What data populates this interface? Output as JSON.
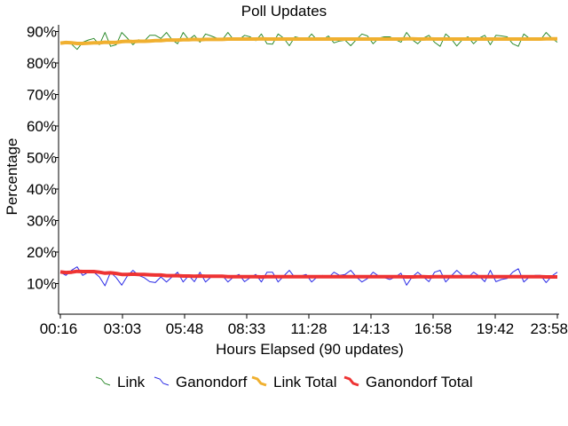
{
  "chart_data": {
    "type": "line",
    "title": "Poll Updates",
    "xlabel": "Hours Elapsed (90 updates)",
    "ylabel": "Percentage",
    "ylim": [
      0,
      90
    ],
    "x_ticks": [
      "00:16",
      "03:03",
      "05:48",
      "08:33",
      "11:28",
      "14:13",
      "16:58",
      "19:42",
      "23:58"
    ],
    "y_ticks": [
      "10%",
      "20%",
      "30%",
      "40%",
      "50%",
      "60%",
      "70%",
      "80%",
      "90%"
    ],
    "legend_position": "bottom",
    "grid": false,
    "series": [
      {
        "name": "Link",
        "color": "#2e8b2e",
        "values": [
          86.6,
          86.8,
          86,
          84.3,
          86.6,
          87.3,
          87.8,
          85.8,
          89.7,
          85.3,
          85.8,
          89.7,
          87.9,
          85.8,
          87.4,
          86.9,
          88.8,
          88.8,
          87.8,
          89.7,
          87.4,
          86.1,
          89.7,
          87.4,
          88.8,
          86.6,
          89.2,
          88.6,
          87.9,
          87.4,
          89.7,
          87.4,
          87.4,
          88.8,
          88.3,
          87.1,
          89.2,
          86.1,
          86,
          89.2,
          87.9,
          85.5,
          88.3,
          87.9,
          87.2,
          89.2,
          87.3,
          87.4,
          88.6,
          86.4,
          87,
          87.2,
          85.5,
          87.4,
          89.2,
          88.6,
          86.1,
          87.9,
          88.3,
          88.3,
          87.4,
          86.6,
          89.7,
          87.4,
          86.1,
          87.9,
          88.8,
          86.6,
          85.3,
          89.2,
          87.7,
          85.4,
          87.4,
          88.3,
          86.1,
          87.9,
          88.8,
          85.8,
          88.8,
          88.6,
          88.3,
          86.1,
          85.3,
          89.2,
          87.8,
          87.3,
          87.4,
          89.7,
          87.9,
          86.6
        ]
      },
      {
        "name": "Ganondorf",
        "color": "#2a2ae6",
        "values": [
          13.6,
          12.6,
          14.2,
          15.3,
          12.6,
          13.6,
          13.6,
          12.1,
          9.3,
          13.6,
          11.9,
          9.5,
          12.4,
          14.2,
          12.6,
          11.9,
          10.6,
          10.3,
          12.1,
          10.5,
          12.1,
          13.6,
          10.5,
          12.6,
          10.6,
          13.6,
          10.5,
          12.1,
          12.4,
          12.6,
          10.5,
          12.1,
          12.9,
          10.6,
          11.9,
          12.9,
          10.5,
          13.6,
          13.6,
          10.5,
          12.4,
          14.2,
          11.9,
          12.4,
          12.9,
          10.5,
          12.1,
          12.6,
          11.9,
          13.6,
          12.6,
          12.9,
          14.2,
          12.1,
          10.5,
          11.6,
          13.6,
          12.4,
          11.9,
          11.3,
          12.1,
          13.3,
          9.5,
          12.1,
          13.6,
          12.1,
          10.6,
          13.6,
          14.2,
          10.5,
          12.4,
          14.2,
          12.6,
          11.9,
          13.6,
          12.4,
          10.6,
          14.2,
          10.6,
          11.3,
          11.6,
          13.6,
          14.7,
          10.5,
          12.1,
          12.6,
          12.6,
          10.3,
          12.4,
          13.6
        ]
      },
      {
        "name": "Link Total",
        "color": "#f0b030",
        "values": [
          86.3,
          86.5,
          86.4,
          86.2,
          86.2,
          86.3,
          86.4,
          86.4,
          86.6,
          86.5,
          86.5,
          86.8,
          86.9,
          86.8,
          86.9,
          86.9,
          87.0,
          87.1,
          87.1,
          87.3,
          87.3,
          87.3,
          87.4,
          87.4,
          87.5,
          87.4,
          87.5,
          87.5,
          87.5,
          87.5,
          87.6,
          87.6,
          87.6,
          87.6,
          87.6,
          87.6,
          87.7,
          87.6,
          87.6,
          87.6,
          87.6,
          87.6,
          87.6,
          87.6,
          87.6,
          87.6,
          87.6,
          87.6,
          87.6,
          87.6,
          87.6,
          87.6,
          87.6,
          87.6,
          87.6,
          87.6,
          87.6,
          87.6,
          87.6,
          87.6,
          87.6,
          87.6,
          87.7,
          87.7,
          87.6,
          87.6,
          87.7,
          87.6,
          87.6,
          87.6,
          87.6,
          87.6,
          87.6,
          87.6,
          87.6,
          87.6,
          87.6,
          87.6,
          87.6,
          87.6,
          87.6,
          87.6,
          87.6,
          87.6,
          87.6,
          87.6,
          87.6,
          87.7,
          87.7,
          87.7
        ]
      },
      {
        "name": "Ganondorf Total",
        "color": "#ee3333",
        "values": [
          13.7,
          13.5,
          13.6,
          13.9,
          13.8,
          13.8,
          13.8,
          13.6,
          13.3,
          13.4,
          13.2,
          12.9,
          12.9,
          13.0,
          12.9,
          12.9,
          12.8,
          12.7,
          12.7,
          12.5,
          12.5,
          12.5,
          12.4,
          12.4,
          12.3,
          12.4,
          12.3,
          12.3,
          12.3,
          12.3,
          12.2,
          12.2,
          12.2,
          12.2,
          12.2,
          12.2,
          12.1,
          12.2,
          12.2,
          12.2,
          12.2,
          12.2,
          12.2,
          12.2,
          12.2,
          12.2,
          12.2,
          12.2,
          12.2,
          12.2,
          12.2,
          12.2,
          12.2,
          12.2,
          12.2,
          12.2,
          12.2,
          12.2,
          12.2,
          12.2,
          12.2,
          12.2,
          12.1,
          12.1,
          12.2,
          12.2,
          12.1,
          12.2,
          12.2,
          12.2,
          12.2,
          12.2,
          12.2,
          12.2,
          12.2,
          12.2,
          12.2,
          12.2,
          12.2,
          12.2,
          12.2,
          12.2,
          12.2,
          12.2,
          12.2,
          12.2,
          12.2,
          12.1,
          12.1,
          12.1
        ]
      }
    ]
  }
}
